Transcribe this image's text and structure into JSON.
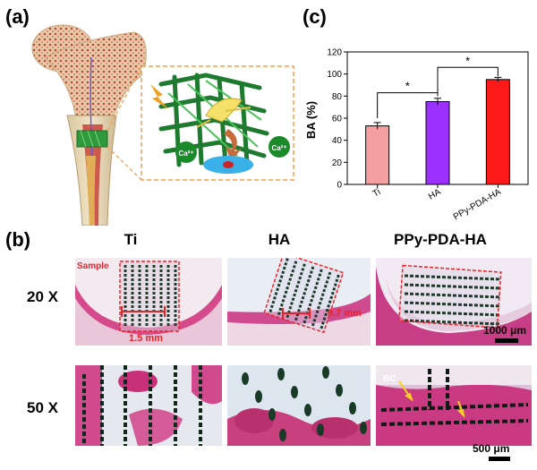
{
  "panels": {
    "a": "(a)",
    "b": "(b)",
    "c": "(c)"
  },
  "panel_a": {
    "ion_left": "Ca²⁺",
    "ion_right": "Ca²⁺"
  },
  "panel_b": {
    "columns": [
      "Ti",
      "HA",
      "PPy-PDA-HA"
    ],
    "rows": [
      "20 X",
      "50 X"
    ],
    "sample_label": "Sample",
    "ti_measure": "1.5 mm",
    "ha_measure": "0.7 mm",
    "bc_label": "BC",
    "scale_top": "1000 μm",
    "scale_bottom": "500 μm"
  },
  "chart_data": {
    "type": "bar",
    "categories": [
      "Ti",
      "HA",
      "PPy-PDA-HA"
    ],
    "values": [
      53,
      75,
      95
    ],
    "errors": [
      3,
      3,
      2
    ],
    "colors": [
      "#f4a0a0",
      "#9b30ff",
      "#ff1a1a"
    ],
    "ylabel": "BA (%)",
    "ylim": [
      0,
      120
    ],
    "yticks": [
      0,
      20,
      40,
      60,
      80,
      100,
      120
    ],
    "significance": [
      "*",
      "*"
    ]
  }
}
